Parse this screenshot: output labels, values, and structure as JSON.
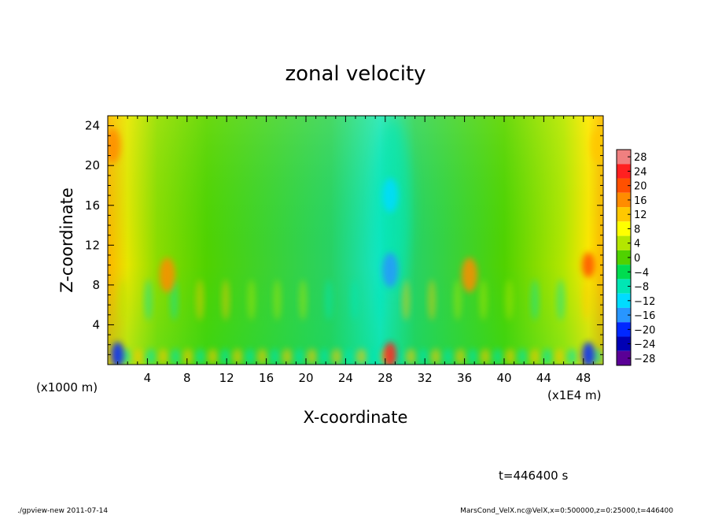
{
  "chart_data": {
    "type": "heatmap",
    "title": "zonal velocity",
    "xlabel": "X-coordinate",
    "ylabel": "Z-coordinate",
    "x_units": "(x1E4 m)",
    "y_units": "(x1000 m)",
    "xlim": [
      0,
      50
    ],
    "ylim": [
      0,
      25
    ],
    "x_ticks": [
      4,
      8,
      12,
      16,
      20,
      24,
      28,
      32,
      36,
      40,
      44,
      48
    ],
    "y_ticks": [
      4,
      8,
      12,
      16,
      20,
      24
    ],
    "x_tick_labels": [
      "4",
      "8",
      "12",
      "16",
      "20",
      "24",
      "28",
      "32",
      "36",
      "40",
      "44",
      "48"
    ],
    "y_tick_labels": [
      "4",
      "8",
      "12",
      "16",
      "20",
      "24"
    ],
    "colorbar": {
      "levels": [
        28,
        24,
        20,
        16,
        12,
        8,
        4,
        0,
        -4,
        -8,
        -12,
        -16,
        -20,
        -24,
        -28
      ],
      "labels": [
        "28",
        "24",
        "20",
        "16",
        "12",
        "8",
        "4",
        "0",
        "−4",
        "−8",
        "−12",
        "−16",
        "−20",
        "−24",
        "−28"
      ],
      "colors": [
        "#f08080",
        "#ff2020",
        "#ff5000",
        "#ff8c00",
        "#ffc800",
        "#ffff00",
        "#b4e600",
        "#50d200",
        "#00dc50",
        "#00e6b4",
        "#00dcff",
        "#2896ff",
        "#0028ff",
        "#0000b4",
        "#5a0096"
      ]
    },
    "field_features": [
      {
        "x": 28.5,
        "z": 9.5,
        "value": -16,
        "note": "blue core"
      },
      {
        "x": 28.5,
        "z": 17.0,
        "value": -12,
        "note": "cyan column upper"
      },
      {
        "x": 1.0,
        "z": 1.0,
        "value": -20,
        "note": "blue near-surface"
      },
      {
        "x": 48.5,
        "z": 1.0,
        "value": -20,
        "note": "blue near-surface"
      },
      {
        "x": 28.5,
        "z": 1.0,
        "value": 24,
        "note": "red near-surface"
      },
      {
        "x": 48.5,
        "z": 10.0,
        "value": 18,
        "note": "orange blob"
      },
      {
        "x": 6.0,
        "z": 9.0,
        "value": 16,
        "note": "orange blob"
      },
      {
        "x": 36.5,
        "z": 9.0,
        "value": 14,
        "note": "orange blob"
      },
      {
        "x": 0.5,
        "z": 22.0,
        "value": 14,
        "note": "orange left edge"
      },
      {
        "x": 49.5,
        "z": 22.0,
        "value": 12,
        "note": "yellow right edge"
      }
    ],
    "time_label": "t=446400 s"
  },
  "footer": {
    "left": "./gpview-new   2011-07-14",
    "right": "MarsCond_VelX.nc@VelX,x=0:500000,z=0:25000,t=446400"
  }
}
